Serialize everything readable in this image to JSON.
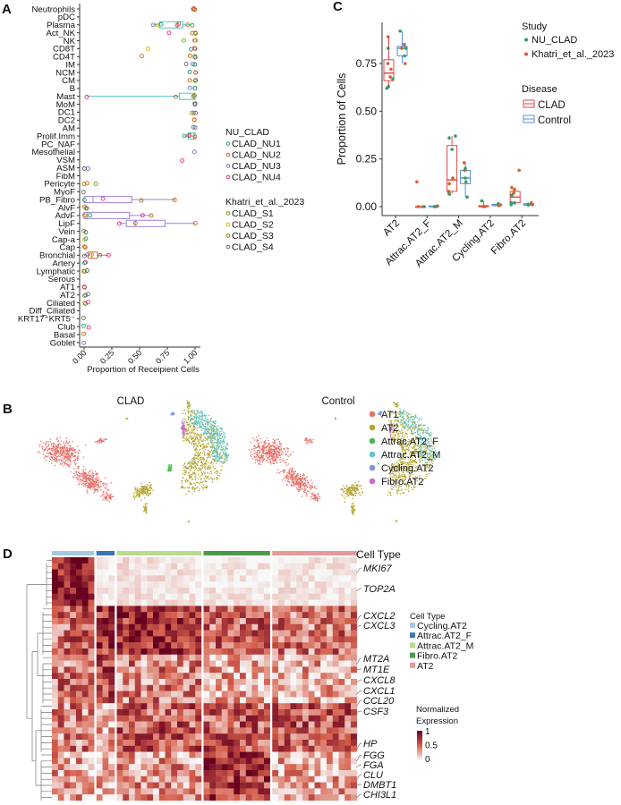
{
  "panels": {
    "a": "A",
    "b": "B",
    "c": "C",
    "d": "D"
  },
  "chart_data": [
    {
      "id": "A",
      "type": "box",
      "orientation": "horizontal",
      "xlabel": "Proportion of Receipient Cells",
      "xlim": [
        0,
        1
      ],
      "xticks": [
        "0.00",
        "0.25",
        "0.50",
        "0.75",
        "1.00"
      ],
      "legend": {
        "placement": "right",
        "groups": [
          {
            "title": "NU_CLAD",
            "items": [
              {
                "name": "CLAD_NU1",
                "color": "#1b9e77"
              },
              {
                "name": "CLAD_NU2",
                "color": "#d95f02"
              },
              {
                "name": "CLAD_NU3",
                "color": "#7570b3"
              },
              {
                "name": "CLAD_NU4",
                "color": "#e7298a"
              }
            ]
          },
          {
            "title": "Khatri_et_al._2023",
            "items": [
              {
                "name": "CLAD_S1",
                "color": "#66a61e"
              },
              {
                "name": "CLAD_S2",
                "color": "#e6ab02"
              },
              {
                "name": "CLAD_S3",
                "color": "#a6761d"
              },
              {
                "name": "CLAD_S4",
                "color": "#666666"
              }
            ]
          }
        ]
      },
      "rows": [
        {
          "label": "Neutrophils",
          "values": [
            1,
            0.99,
            0.98,
            1
          ]
        },
        {
          "label": "pDC",
          "values": []
        },
        {
          "label": "Plasma",
          "values": [
            0.62,
            0.66,
            0.69,
            0.84,
            0.85,
            0.93,
            0.97
          ],
          "box": [
            0.68,
            0.84,
            0.89
          ],
          "box_color": "#4fc1c9"
        },
        {
          "label": "Act_NK",
          "values": [
            0.77,
            0.97,
            1,
            1
          ]
        },
        {
          "label": "NK",
          "values": [
            0.9,
            1,
            1,
            1
          ]
        },
        {
          "label": "CD8T",
          "values": [
            0.57,
            0.96,
            1,
            1
          ]
        },
        {
          "label": "CD4T",
          "values": [
            0.52,
            0.95,
            1,
            1
          ]
        },
        {
          "label": "IM",
          "values": [
            0.92,
            0.98,
            1,
            1
          ]
        },
        {
          "label": "NCM",
          "values": [
            0.95,
            1,
            1
          ]
        },
        {
          "label": "CM",
          "values": [
            0.95,
            1,
            1
          ]
        },
        {
          "label": "B",
          "values": [
            0.95,
            1,
            1
          ]
        },
        {
          "label": "Mast",
          "values": [
            0.02,
            0.83,
            0.99,
            1
          ],
          "box": [
            0.86,
            0.99,
            1.0
          ],
          "box_color": "#4fc1c9"
        },
        {
          "label": "MoM",
          "values": [
            0.99,
            1,
            1
          ]
        },
        {
          "label": "DC1",
          "values": [
            0.97,
            0.98,
            1
          ]
        },
        {
          "label": "DC2",
          "values": [
            0.99,
            1
          ]
        },
        {
          "label": "AM",
          "values": [
            0.99,
            1
          ]
        },
        {
          "label": "Prolif.Imm",
          "values": [
            0.9,
            0.94,
            0.95,
            1
          ],
          "box": [
            0.94,
            0.99,
            1.0
          ],
          "box_color": "#4fc1c9"
        },
        {
          "label": "PC_NAF",
          "values": []
        },
        {
          "label": "Mesothelial",
          "values": [
            1
          ]
        },
        {
          "label": "VSM",
          "values": [
            0.89
          ]
        },
        {
          "label": "ASM",
          "values": [
            0,
            0.01,
            0.04
          ]
        },
        {
          "label": "FibM",
          "values": []
        },
        {
          "label": "Pericyte",
          "values": [
            0,
            0.03,
            0.11
          ]
        },
        {
          "label": "MyoF",
          "values": [
            0
          ]
        },
        {
          "label": "PB_Fibro",
          "values": [
            0,
            0.17,
            0.52,
            0.82
          ],
          "box": [
            0,
            0.08,
            0.43
          ],
          "box_color": "#a07fd6"
        },
        {
          "label": "AlvF",
          "values": [
            0,
            0.01,
            0.02
          ]
        },
        {
          "label": "AdvF",
          "values": [
            0,
            0.01,
            0.05,
            0.53,
            0.6
          ],
          "box": [
            0,
            0.03,
            0.41
          ],
          "box_color": "#a07fd6"
        },
        {
          "label": "LipF",
          "values": [
            0.32,
            0.46,
            1.0
          ],
          "box": [
            0.38,
            0.46,
            0.73
          ],
          "box_color": "#a07fd6"
        },
        {
          "label": "Vein",
          "values": [
            0,
            0.01
          ]
        },
        {
          "label": "Cap-a",
          "values": [
            0,
            0.01
          ]
        },
        {
          "label": "Cap",
          "values": [
            0,
            0.01
          ]
        },
        {
          "label": "Bronchial",
          "values": [
            0,
            0.03,
            0.07,
            0.14,
            0.22
          ],
          "box": [
            0.04,
            0.07,
            0.12
          ],
          "box_color": "#e0624f"
        },
        {
          "label": "Artery",
          "values": [
            0,
            0.01
          ]
        },
        {
          "label": "Lymphatic",
          "values": [
            0,
            0.01,
            0.03
          ]
        },
        {
          "label": "Serous",
          "values": []
        },
        {
          "label": "AT1",
          "values": [
            0,
            0.01
          ]
        },
        {
          "label": "AT2",
          "values": [
            0,
            0.01,
            0.03
          ]
        },
        {
          "label": "Ciliated",
          "values": [
            0,
            0.01,
            0.04
          ]
        },
        {
          "label": "Diff_Ciliated",
          "values": []
        },
        {
          "label": "KRT17⁺KRT5⁻",
          "values": [
            0
          ]
        },
        {
          "label": "Club",
          "values": [
            0,
            0.04
          ]
        },
        {
          "label": "Basal",
          "values": [
            0
          ]
        },
        {
          "label": "Goblet",
          "values": [
            0
          ]
        }
      ]
    },
    {
      "id": "B",
      "type": "scatter",
      "facets": [
        "CLAD",
        "Control"
      ],
      "legend": {
        "placement": "right",
        "items": [
          {
            "name": "AT1",
            "color": "#e8736b"
          },
          {
            "name": "AT2",
            "color": "#b5a532"
          },
          {
            "name": "Attrac.AT2_F",
            "color": "#4cb84a"
          },
          {
            "name": "Attrac.AT2_M",
            "color": "#5ec7cc"
          },
          {
            "name": "Cycling.AT2",
            "color": "#7f93dd"
          },
          {
            "name": "Fibro.AT2",
            "color": "#c86dc8"
          }
        ]
      }
    },
    {
      "id": "C",
      "type": "box",
      "ylabel": "Proportion of Cells",
      "ylim": [
        0,
        0.95
      ],
      "yticks": [
        "0.00",
        "0.25",
        "0.50",
        "0.75"
      ],
      "categories": [
        "AT2",
        "Attrac.AT2_F",
        "Attrac.AT2_M",
        "Cycling.AT2",
        "Fibro.AT2"
      ],
      "study_legend": {
        "title": "Study",
        "items": [
          {
            "name": "NU_CLAD",
            "color": "#2e9e6b"
          },
          {
            "name": "Khatri_et_al._2023",
            "color": "#d4622a"
          }
        ]
      },
      "disease_legend": {
        "title": "Disease",
        "items": [
          {
            "name": "CLAD",
            "color": "#e0474c"
          },
          {
            "name": "Control",
            "color": "#5b8fd6"
          }
        ]
      },
      "series": [
        {
          "name": "CLAD",
          "boxes": [
            {
              "whisker": [
                0.62,
                0.89
              ],
              "q1": 0.66,
              "median": 0.7,
              "q3": 0.77,
              "points": [
                [
                  0,
                  0.62
                ],
                [
                  0,
                  0.63
                ],
                [
                  0,
                  0.67
                ],
                [
                  0,
                  0.83
                ],
                [
                  1,
                  0.68
                ],
                [
                  1,
                  0.72
                ],
                [
                  1,
                  0.75
                ],
                [
                  1,
                  0.89
                ]
              ]
            },
            {
              "whisker": [
                0,
                0
              ],
              "q1": 0,
              "median": 0,
              "q3": 0,
              "points": [
                [
                  1,
                  0.13
                ],
                [
                  1,
                  0
                ],
                [
                  1,
                  0
                ],
                [
                  0,
                  0
                ]
              ]
            },
            {
              "whisker": [
                0.07,
                0.37
              ],
              "q1": 0.08,
              "median": 0.14,
              "q3": 0.32,
              "points": [
                [
                  0,
                  0.36
                ],
                [
                  0,
                  0.37
                ],
                [
                  0,
                  0.3
                ],
                [
                  0,
                  0.07
                ],
                [
                  0,
                  0.065
                ],
                [
                  1,
                  0.15
                ],
                [
                  1,
                  0.12
                ],
                [
                  1,
                  0.08
                ]
              ]
            },
            {
              "whisker": [
                0,
                0.03
              ],
              "q1": 0,
              "median": 0,
              "q3": 0.005,
              "points": [
                [
                  0,
                  0.03
                ],
                [
                  1,
                  0
                ],
                [
                  1,
                  0
                ],
                [
                  1,
                  0
                ]
              ]
            },
            {
              "whisker": [
                0.01,
                0.1
              ],
              "q1": 0.02,
              "median": 0.05,
              "q3": 0.08,
              "points": [
                [
                  1,
                  0.19
                ],
                [
                  1,
                  0.1
                ],
                [
                  1,
                  0.09
                ],
                [
                  1,
                  0.07
                ],
                [
                  0,
                  0.02
                ],
                [
                  0,
                  0.01
                ],
                [
                  0,
                  0.02
                ],
                [
                  0,
                  0.06
                ]
              ]
            }
          ]
        },
        {
          "name": "Control",
          "boxes": [
            {
              "whisker": [
                0.75,
                0.92
              ],
              "q1": 0.79,
              "median": 0.83,
              "q3": 0.84,
              "points": [
                [
                  0,
                  0.92
                ],
                [
                  0,
                  0.83
                ],
                [
                  0,
                  0.79
                ],
                [
                  1,
                  0.85
                ],
                [
                  1,
                  0.83
                ],
                [
                  1,
                  0.75
                ]
              ]
            },
            {
              "whisker": [
                0,
                0.005
              ],
              "q1": 0,
              "median": 0,
              "q3": 0.003,
              "points": [
                [
                  1,
                  0.003
                ],
                [
                  1,
                  0
                ],
                [
                  0,
                  0
                ],
                [
                  0,
                  0
                ]
              ]
            },
            {
              "whisker": [
                0.05,
                0.23
              ],
              "q1": 0.12,
              "median": 0.15,
              "q3": 0.19,
              "points": [
                [
                  1,
                  0.23
                ],
                [
                  1,
                  0.19
                ],
                [
                  0,
                  0.2
                ],
                [
                  0,
                  0.15
                ],
                [
                  0,
                  0.13
                ],
                [
                  0,
                  0.05
                ]
              ]
            },
            {
              "whisker": [
                0.005,
                0.015
              ],
              "q1": 0.005,
              "median": 0.01,
              "q3": 0.012,
              "points": [
                [
                  0,
                  0.015
                ],
                [
                  0,
                  0.01
                ],
                [
                  1,
                  0.005
                ],
                [
                  1,
                  0.01
                ]
              ]
            },
            {
              "whisker": [
                0.005,
                0.02
              ],
              "q1": 0.008,
              "median": 0.012,
              "q3": 0.015,
              "points": [
                [
                  1,
                  0.02
                ],
                [
                  1,
                  0.01
                ],
                [
                  0,
                  0.012
                ],
                [
                  0,
                  0.008
                ]
              ]
            }
          ]
        }
      ]
    },
    {
      "id": "D",
      "type": "heatmap",
      "annotation_title": "Cell Type",
      "column_groups": [
        {
          "name": "Cycling.AT2",
          "color": "#a6c8e3",
          "n": 7
        },
        {
          "name": "Attrac.AT2_F",
          "color": "#3c74b4",
          "n": 3
        },
        {
          "name": "Attrac.AT2_M",
          "color": "#b9dc8c",
          "n": 14
        },
        {
          "name": "Fibro.AT2",
          "color": "#4a9a4a",
          "n": 11
        },
        {
          "name": "AT2",
          "color": "#e5999a",
          "n": 14
        }
      ],
      "column_order_legend": [
        "Cycling.AT2",
        "Attrac.AT2_F",
        "Attrac.AT2_M",
        "Fibro.AT2",
        "AT2"
      ],
      "row_blocks": [
        {
          "rows": 8,
          "levels": [
            0.85,
            0.02,
            0.08,
            0.05,
            0.06
          ]
        },
        {
          "rows": 8,
          "levels": [
            0.5,
            0.7,
            0.75,
            0.5,
            0.45
          ]
        },
        {
          "rows": 8,
          "levels": [
            0.45,
            0.6,
            0.4,
            0.25,
            0.25
          ]
        },
        {
          "rows": 8,
          "levels": [
            0.4,
            0.2,
            0.55,
            0.55,
            0.55
          ]
        },
        {
          "rows": 8,
          "levels": [
            0.25,
            0.2,
            0.35,
            0.65,
            0.25
          ]
        }
      ],
      "genes": [
        {
          "name": "MKI67",
          "row": 2
        },
        {
          "name": "TOP2A",
          "row": 5
        },
        {
          "name": "CXCL2",
          "row": 10
        },
        {
          "name": "CXCL3",
          "row": 11
        },
        {
          "name": "MT2A",
          "row": 17
        },
        {
          "name": "MT1E",
          "row": 18
        },
        {
          "name": "CXCL8",
          "row": 20
        },
        {
          "name": "CXCL1",
          "row": 22
        },
        {
          "name": "CCL20",
          "row": 24
        },
        {
          "name": "CSF3",
          "row": 25
        },
        {
          "name": "HP",
          "row": 31
        },
        {
          "name": "FGG",
          "row": 33
        },
        {
          "name": "FGA",
          "row": 34
        },
        {
          "name": "CLU",
          "row": 36
        },
        {
          "name": "DMBT1",
          "row": 37
        },
        {
          "name": "CHI3L1",
          "row": 39
        }
      ],
      "colorbar": {
        "title_line1": "Normalized",
        "title_line2": "Expression",
        "ticks": [
          "1",
          "0.5",
          "0"
        ],
        "low": "#f7f7f7",
        "mid": "#d6604d",
        "high": "#67001f",
        "range": [
          0,
          1
        ]
      }
    }
  ]
}
